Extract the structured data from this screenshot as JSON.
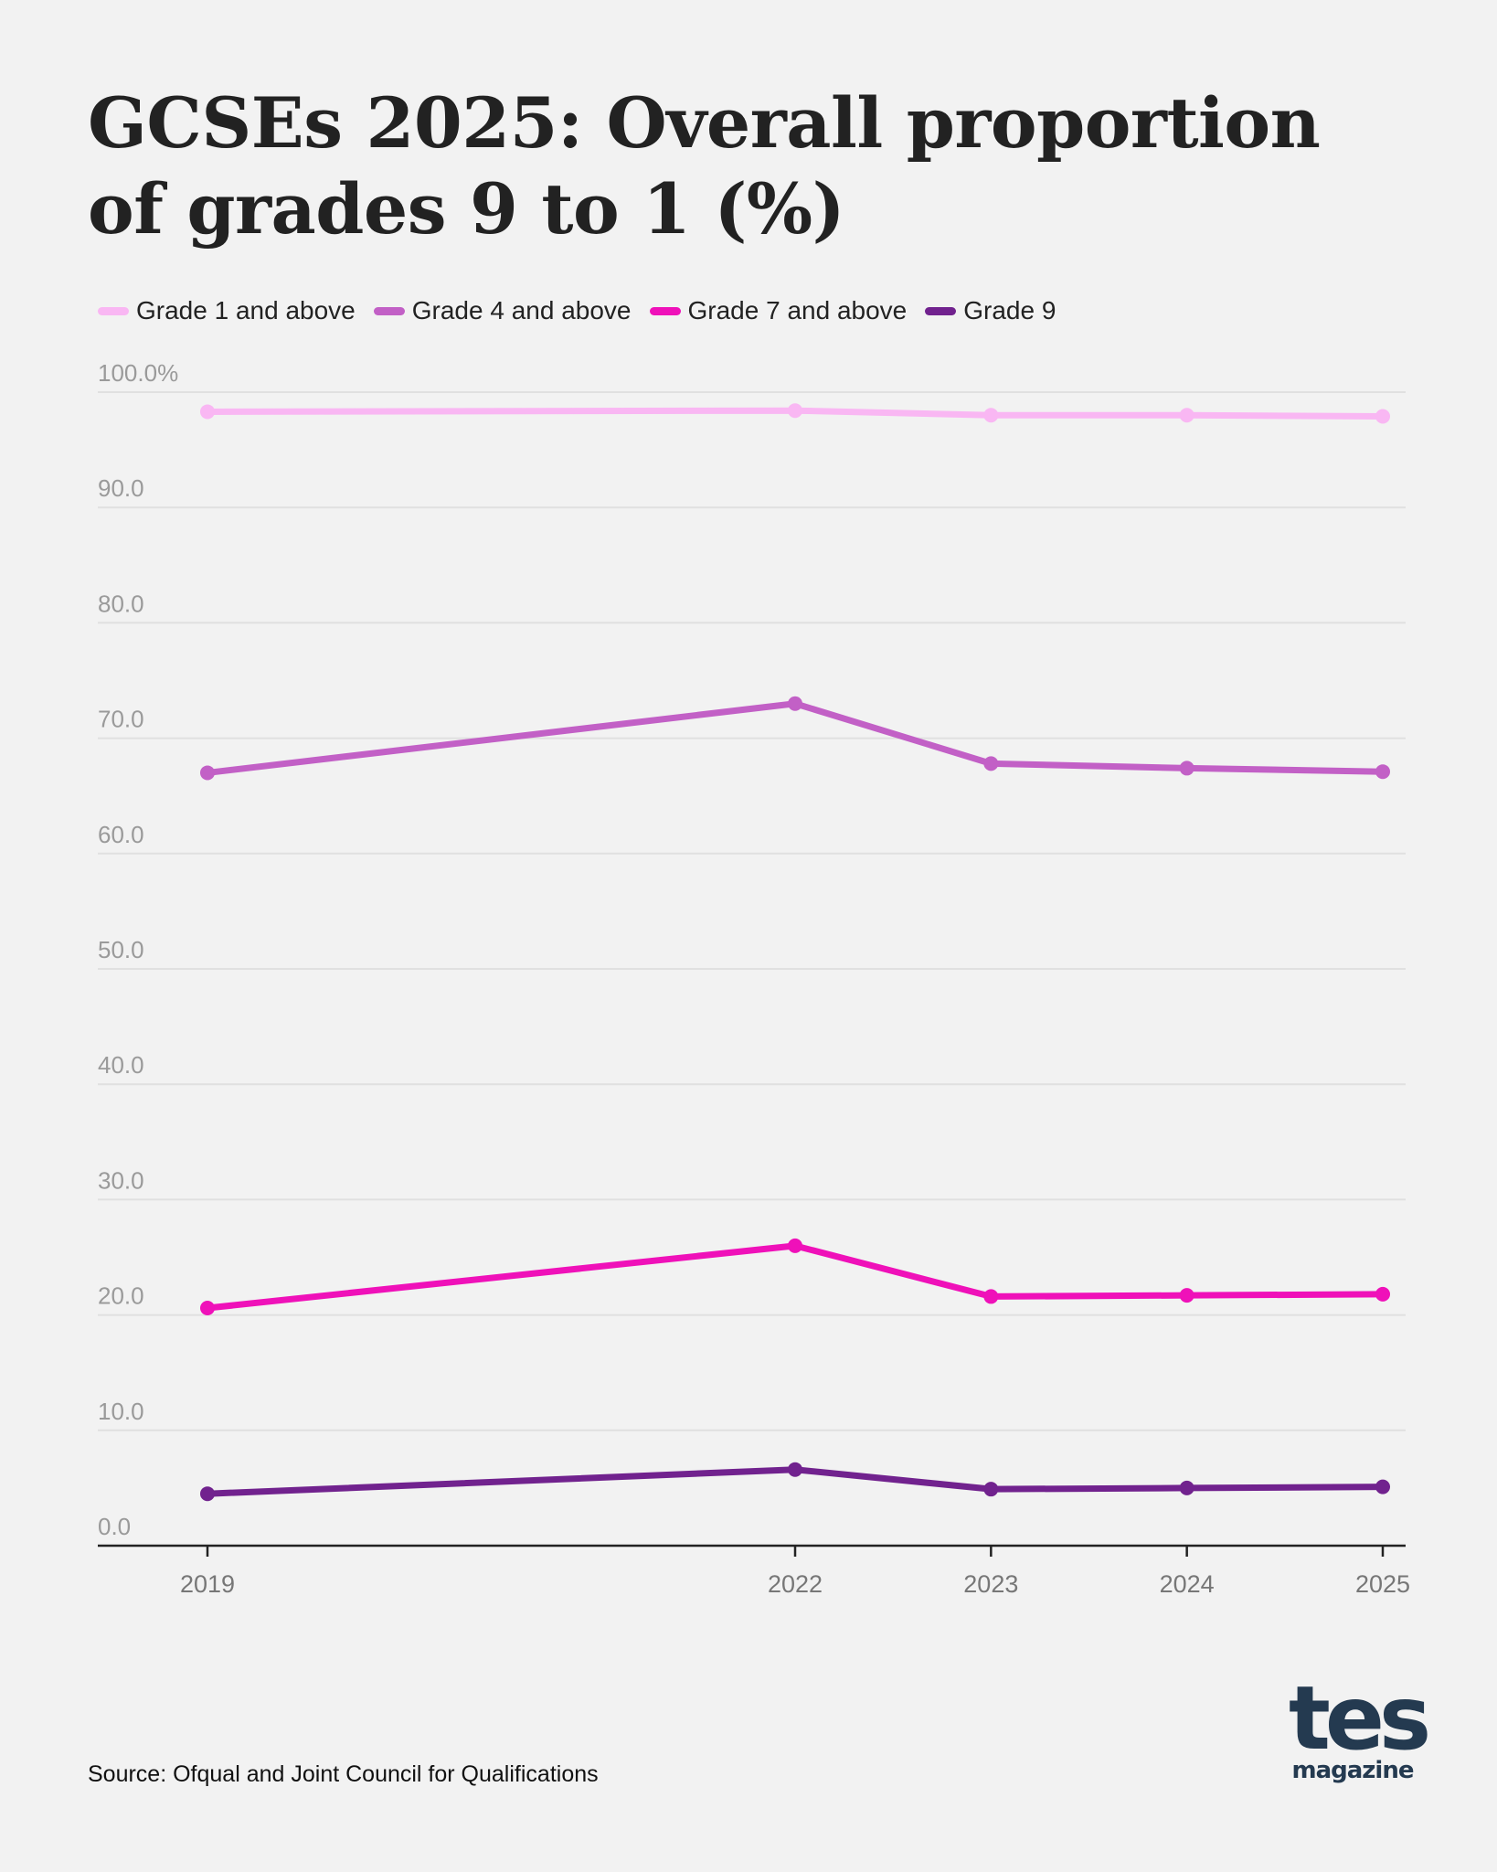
{
  "chart_data": {
    "type": "line",
    "title": "GCSEs 2025: Overall proportion of grades 9 to 1 (%)",
    "xlabel": "",
    "ylabel": "",
    "x": [
      "2019",
      "2022",
      "2023",
      "2024",
      "2025"
    ],
    "x_numeric": [
      2019,
      2022,
      2023,
      2024,
      2025
    ],
    "ylim": [
      0,
      100
    ],
    "yticks": [
      0,
      10,
      20,
      30,
      40,
      50,
      60,
      70,
      80,
      90,
      100
    ],
    "ytick_labels": [
      "0.0",
      "10.0",
      "20.0",
      "30.0",
      "40.0",
      "50.0",
      "60.0",
      "70.0",
      "80.0",
      "90.0",
      "100.0%"
    ],
    "grid": true,
    "legend_position": "top-left",
    "series": [
      {
        "name": "Grade 1 and above",
        "color": "#f9b7f3",
        "values": [
          98.3,
          98.4,
          98.0,
          98.0,
          97.9
        ]
      },
      {
        "name": "Grade 4 and above",
        "color": "#c260c6",
        "values": [
          67.0,
          73.0,
          67.8,
          67.4,
          67.1
        ]
      },
      {
        "name": "Grade 7 and above",
        "color": "#ef11b9",
        "values": [
          20.6,
          26.0,
          21.6,
          21.7,
          21.8
        ]
      },
      {
        "name": "Grade 9",
        "color": "#71228e",
        "values": [
          4.5,
          6.6,
          4.9,
          5.0,
          5.1
        ]
      }
    ]
  },
  "title_line1": "GCSEs 2025: Overall proportion",
  "title_line2": "of grades 9 to 1 (%)",
  "source": "Source: Ofqual and Joint Council for Qualifications",
  "logo": {
    "main": "tes",
    "sub": "magazine",
    "color": "#243a50"
  },
  "colors": {
    "background": "#f2f2f2",
    "gridline": "#e0e0e0",
    "axis": "#222222",
    "tick_label": "#9a9a9a",
    "x_label": "#777777"
  }
}
